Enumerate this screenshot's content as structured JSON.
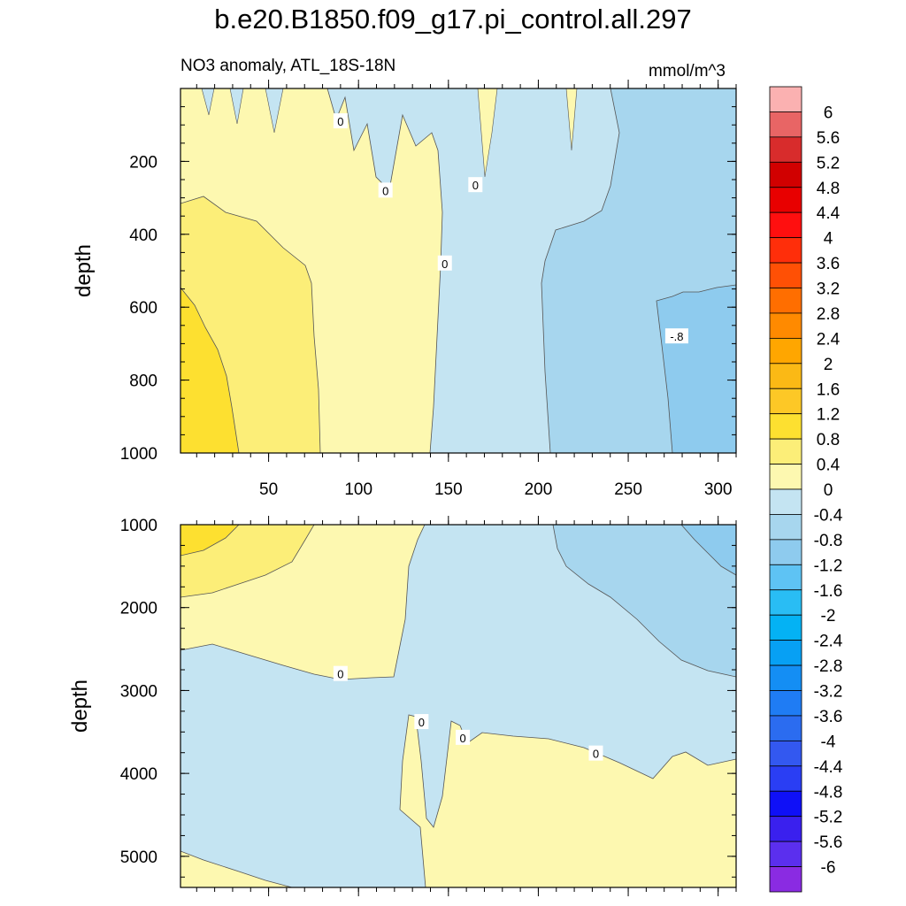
{
  "title": "b.e20.B1850.f09_g17.pi_control.all.297",
  "subtitle": "NO3 anomaly, ATL_18S-18N",
  "units": "mmol/m^3",
  "chart_data": {
    "type": "heatmap",
    "panels": [
      {
        "name": "upper",
        "ylabel": "depth",
        "ylim": [
          1000,
          0
        ],
        "yticks": [
          200,
          400,
          600,
          800,
          1000
        ],
        "xlim": [
          1,
          310
        ],
        "xticks": [
          50,
          100,
          150,
          200,
          250,
          300
        ],
        "contour_labels": [
          {
            "text": "0",
            "x": 90,
            "y": 90
          },
          {
            "text": "0",
            "x": 115,
            "y": 280
          },
          {
            "text": "0",
            "x": 165,
            "y": 265
          },
          {
            "text": "0",
            "x": 148,
            "y": 480
          },
          {
            "text": "-.8",
            "x": 277,
            "y": 680
          }
        ]
      },
      {
        "name": "lower",
        "ylabel": "depth",
        "ylim": [
          5375,
          1000
        ],
        "yticks": [
          1000,
          2000,
          3000,
          4000,
          5000
        ],
        "xlim": [
          1,
          310
        ],
        "contour_labels": [
          {
            "text": "0",
            "x": 90,
            "y": 2800
          },
          {
            "text": "0",
            "x": 135,
            "y": 3380
          },
          {
            "text": "0",
            "x": 158,
            "y": 3570
          },
          {
            "text": "0",
            "x": 232,
            "y": 3760
          }
        ]
      }
    ],
    "colorbar": {
      "labels": [
        "6",
        "5.6",
        "5.2",
        "4.8",
        "4.4",
        "4",
        "3.6",
        "3.2",
        "2.8",
        "2.4",
        "2",
        "1.6",
        "1.2",
        "0.8",
        "0.4",
        "0",
        "-0.4",
        "-0.8",
        "-1.2",
        "-1.6",
        "-2",
        "-2.4",
        "-2.8",
        "-3.2",
        "-3.6",
        "-4",
        "-4.4",
        "-4.8",
        "-5.2",
        "-5.6",
        "-6"
      ],
      "colors": [
        "#fbb1b1",
        "#e86565",
        "#d82c2c",
        "#d10000",
        "#e80000",
        "#ff0f0f",
        "#ff2e0a",
        "#ff5005",
        "#ff6e00",
        "#ff8a00",
        "#ffa600",
        "#fbb915",
        "#fdc826",
        "#fde030",
        "#fcee78",
        "#fdf8b0",
        "#c4e4f2",
        "#a7d6ee",
        "#8ecbee",
        "#5ec3f4",
        "#29bdf4",
        "#04b2f4",
        "#07a0f4",
        "#148ef4",
        "#1f7cf4",
        "#2b6cf0",
        "#3358f0",
        "#2a3ef4",
        "#0f10f7",
        "#3a20ee",
        "#5b2fee",
        "#8a2be2"
      ]
    }
  }
}
